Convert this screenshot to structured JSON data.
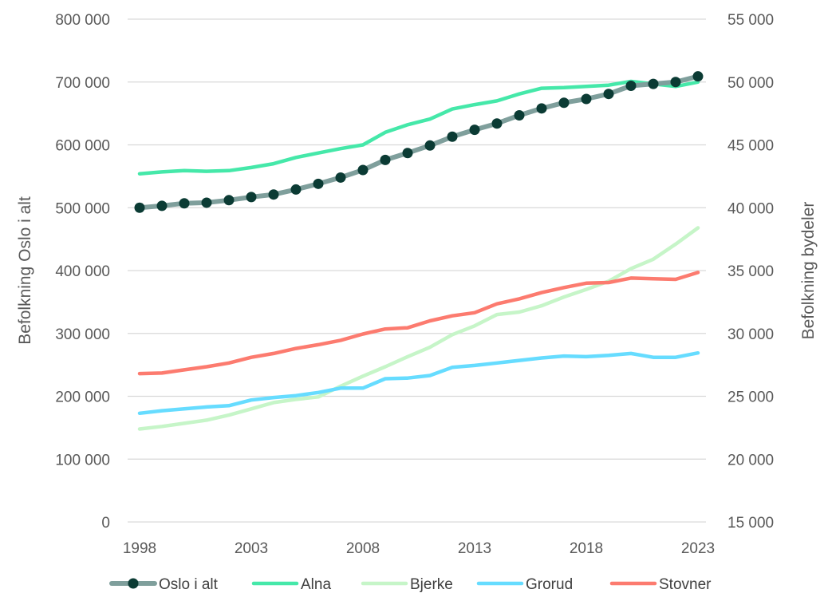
{
  "chart_data": {
    "type": "line",
    "title": "",
    "x": [
      1998,
      1999,
      2000,
      2001,
      2002,
      2003,
      2004,
      2005,
      2006,
      2007,
      2008,
      2009,
      2010,
      2011,
      2012,
      2013,
      2014,
      2015,
      2016,
      2017,
      2018,
      2019,
      2020,
      2021,
      2022,
      2023
    ],
    "x_ticks": [
      "1998",
      "2003",
      "2008",
      "2013",
      "2018",
      "2023"
    ],
    "ylabel_left": "Befolkning Oslo i alt",
    "ylabel_right": "Befolkning bydeler",
    "ylim_left": [
      0,
      800000
    ],
    "ylim_right": [
      15000,
      55000
    ],
    "y_ticks_left": [
      "0",
      "100 000",
      "200 000",
      "300 000",
      "400 000",
      "500 000",
      "600 000",
      "700 000",
      "800 000"
    ],
    "y_ticks_right": [
      "15 000",
      "20 000",
      "25 000",
      "30 000",
      "35 000",
      "40 000",
      "45 000",
      "50 000",
      "55 000"
    ],
    "grid": true,
    "legend_position": "bottom",
    "series": [
      {
        "name": "Oslo i alt",
        "axis": "left",
        "color": "#7f9f9c",
        "marker_color": "#0b3b34",
        "values": [
          500000,
          503000,
          507000,
          508000,
          512000,
          517000,
          521000,
          529000,
          538000,
          548000,
          560000,
          576000,
          587000,
          599000,
          613000,
          624000,
          634000,
          647000,
          658000,
          667000,
          673000,
          681000,
          694000,
          697000,
          700000,
          709000
        ]
      },
      {
        "name": "Alna",
        "axis": "right",
        "color": "#45e8a9",
        "values": [
          42700,
          42850,
          42950,
          42900,
          42950,
          43200,
          43500,
          44000,
          44350,
          44700,
          45000,
          46000,
          46600,
          47050,
          47850,
          48200,
          48500,
          49050,
          49500,
          49550,
          49650,
          49750,
          50050,
          49850,
          49650,
          50000
        ]
      },
      {
        "name": "Bjerke",
        "axis": "right",
        "color": "#c6f5c8",
        "values": [
          22400,
          22600,
          22850,
          23100,
          23500,
          24000,
          24500,
          24750,
          24950,
          25800,
          26600,
          27350,
          28150,
          28900,
          29900,
          30600,
          31500,
          31700,
          32200,
          32900,
          33500,
          34150,
          35150,
          35900,
          37100,
          38400
        ]
      },
      {
        "name": "Grorud",
        "axis": "right",
        "color": "#66dcff",
        "values": [
          23650,
          23850,
          24000,
          24150,
          24250,
          24700,
          24900,
          25050,
          25300,
          25650,
          25650,
          26400,
          26450,
          26650,
          27300,
          27450,
          27650,
          27850,
          28050,
          28200,
          28150,
          28250,
          28400,
          28100,
          28100,
          28450
        ]
      },
      {
        "name": "Stovner",
        "axis": "right",
        "color": "#fc7b6f",
        "values": [
          26800,
          26850,
          27100,
          27350,
          27650,
          28100,
          28400,
          28800,
          29100,
          29450,
          29950,
          30350,
          30450,
          31000,
          31400,
          31650,
          32350,
          32750,
          33250,
          33650,
          34000,
          34050,
          34400,
          34350,
          34300,
          34850
        ]
      }
    ]
  }
}
